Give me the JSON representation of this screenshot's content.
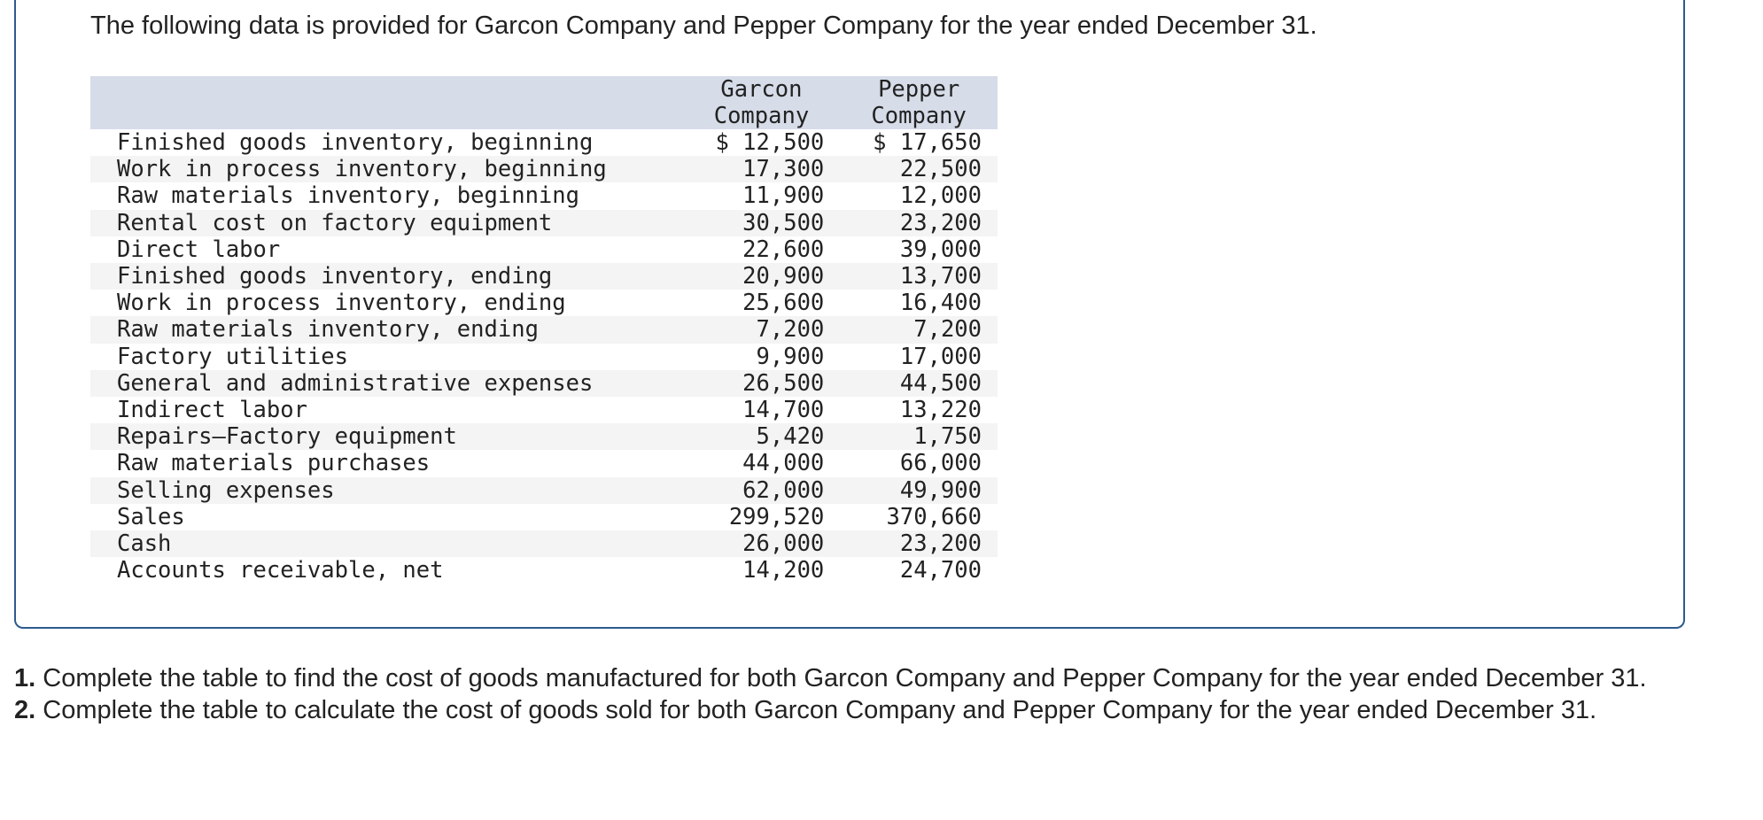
{
  "intro": {
    "text": "The following data is provided for Garcon Company and Pepper Company for the year ended December 31."
  },
  "table": {
    "columns": [
      {
        "line1": "Garcon",
        "line2": "Company"
      },
      {
        "line1": "Pepper",
        "line2": "Company"
      }
    ],
    "rows": [
      {
        "label": "Finished goods inventory, beginning",
        "garcon": "$ 12,500",
        "pepper": "$ 17,650"
      },
      {
        "label": "Work in process inventory, beginning",
        "garcon": "17,300",
        "pepper": "22,500"
      },
      {
        "label": "Raw materials inventory, beginning",
        "garcon": "11,900",
        "pepper": "12,000"
      },
      {
        "label": "Rental cost on factory equipment",
        "garcon": "30,500",
        "pepper": "23,200"
      },
      {
        "label": "Direct labor",
        "garcon": "22,600",
        "pepper": "39,000"
      },
      {
        "label": "Finished goods inventory, ending",
        "garcon": "20,900",
        "pepper": "13,700"
      },
      {
        "label": "Work in process inventory, ending",
        "garcon": "25,600",
        "pepper": "16,400"
      },
      {
        "label": "Raw materials inventory, ending",
        "garcon": "7,200",
        "pepper": "7,200"
      },
      {
        "label": "Factory utilities",
        "garcon": "9,900",
        "pepper": "17,000"
      },
      {
        "label": "General and administrative expenses",
        "garcon": "26,500",
        "pepper": "44,500"
      },
      {
        "label": "Indirect labor",
        "garcon": "14,700",
        "pepper": "13,220"
      },
      {
        "label": "Repairs—Factory equipment",
        "garcon": "5,420",
        "pepper": "1,750"
      },
      {
        "label": "Raw materials purchases",
        "garcon": "44,000",
        "pepper": "66,000"
      },
      {
        "label": "Selling expenses",
        "garcon": "62,000",
        "pepper": "49,900"
      },
      {
        "label": "Sales",
        "garcon": "299,520",
        "pepper": "370,660"
      },
      {
        "label": "Cash",
        "garcon": "26,000",
        "pepper": "23,200"
      },
      {
        "label": "Accounts receivable, net",
        "garcon": "14,200",
        "pepper": "24,700"
      }
    ]
  },
  "questions": [
    {
      "number": "1.",
      "text": " Complete the table to find the cost of goods manufactured for both Garcon Company and Pepper Company for the year ended December 31."
    },
    {
      "number": "2.",
      "text": " Complete the table to calculate the cost of goods sold for both Garcon Company and Pepper Company for the year ended December 31."
    }
  ],
  "colors": {
    "border": "#2d5a8c",
    "header_bg": "#d6dce8",
    "stripe_bg": "#f4f4f4",
    "text": "#222222"
  }
}
